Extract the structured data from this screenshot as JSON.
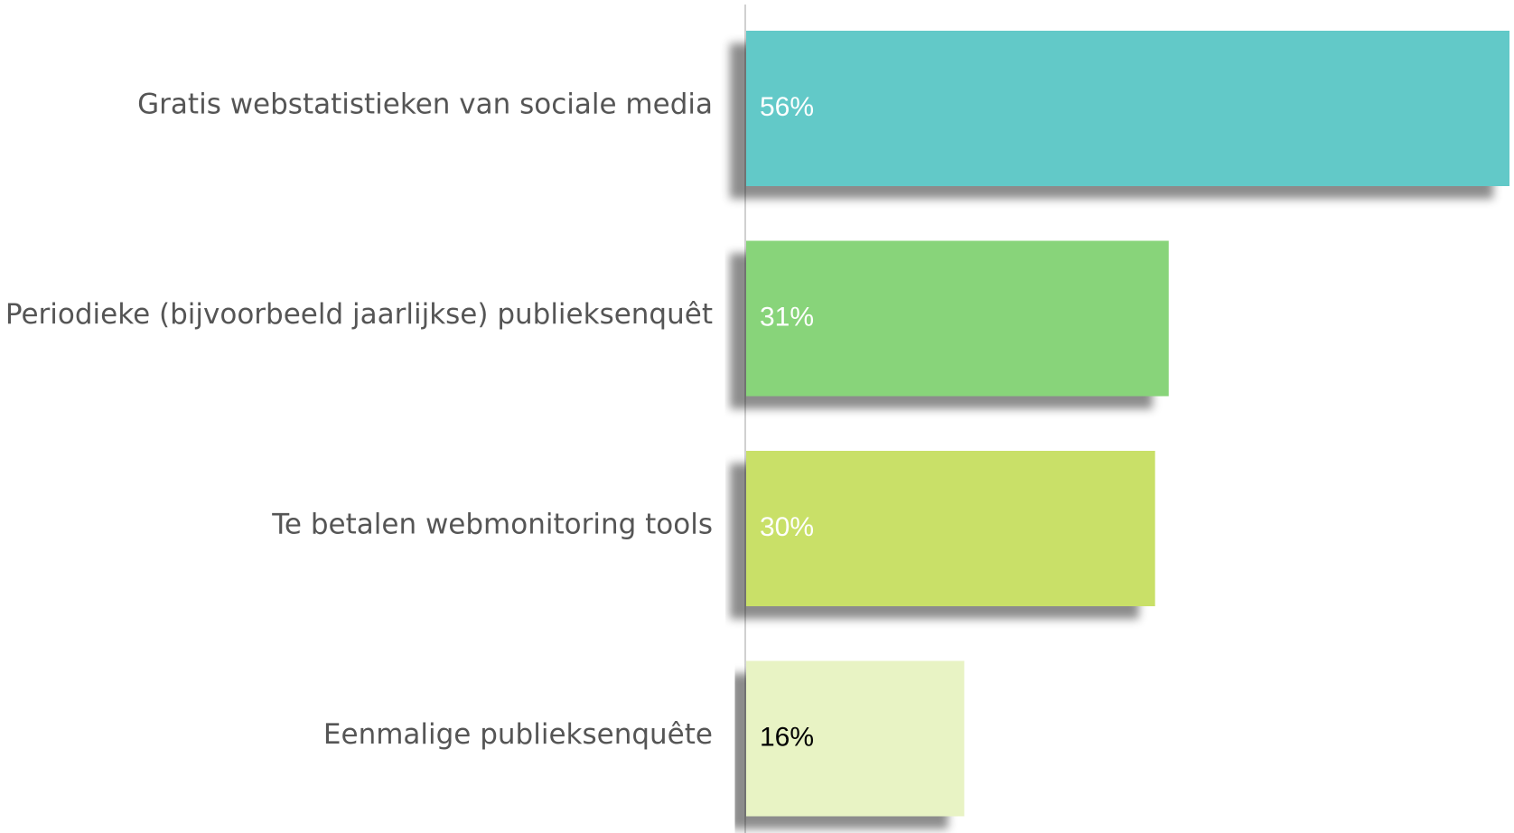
{
  "chart_data": {
    "type": "hbar",
    "categories": [
      "Gratis webstatistieken van sociale media",
      "Periodieke (bijvoorbeeld jaarlijkse) publieksenquêt",
      "Te betalen webmonitoring tools",
      "Eenmalige publieksenquête"
    ],
    "values": [
      56,
      31,
      30,
      16
    ],
    "value_labels": [
      "56%",
      "31%",
      "30%",
      "16%"
    ],
    "colors": [
      "#62c9c8",
      "#88d47a",
      "#c9e067",
      "#e8f3c4"
    ],
    "value_label_colors": [
      "#ffffff",
      "#ffffff",
      "#ffffff",
      "#000000"
    ]
  }
}
